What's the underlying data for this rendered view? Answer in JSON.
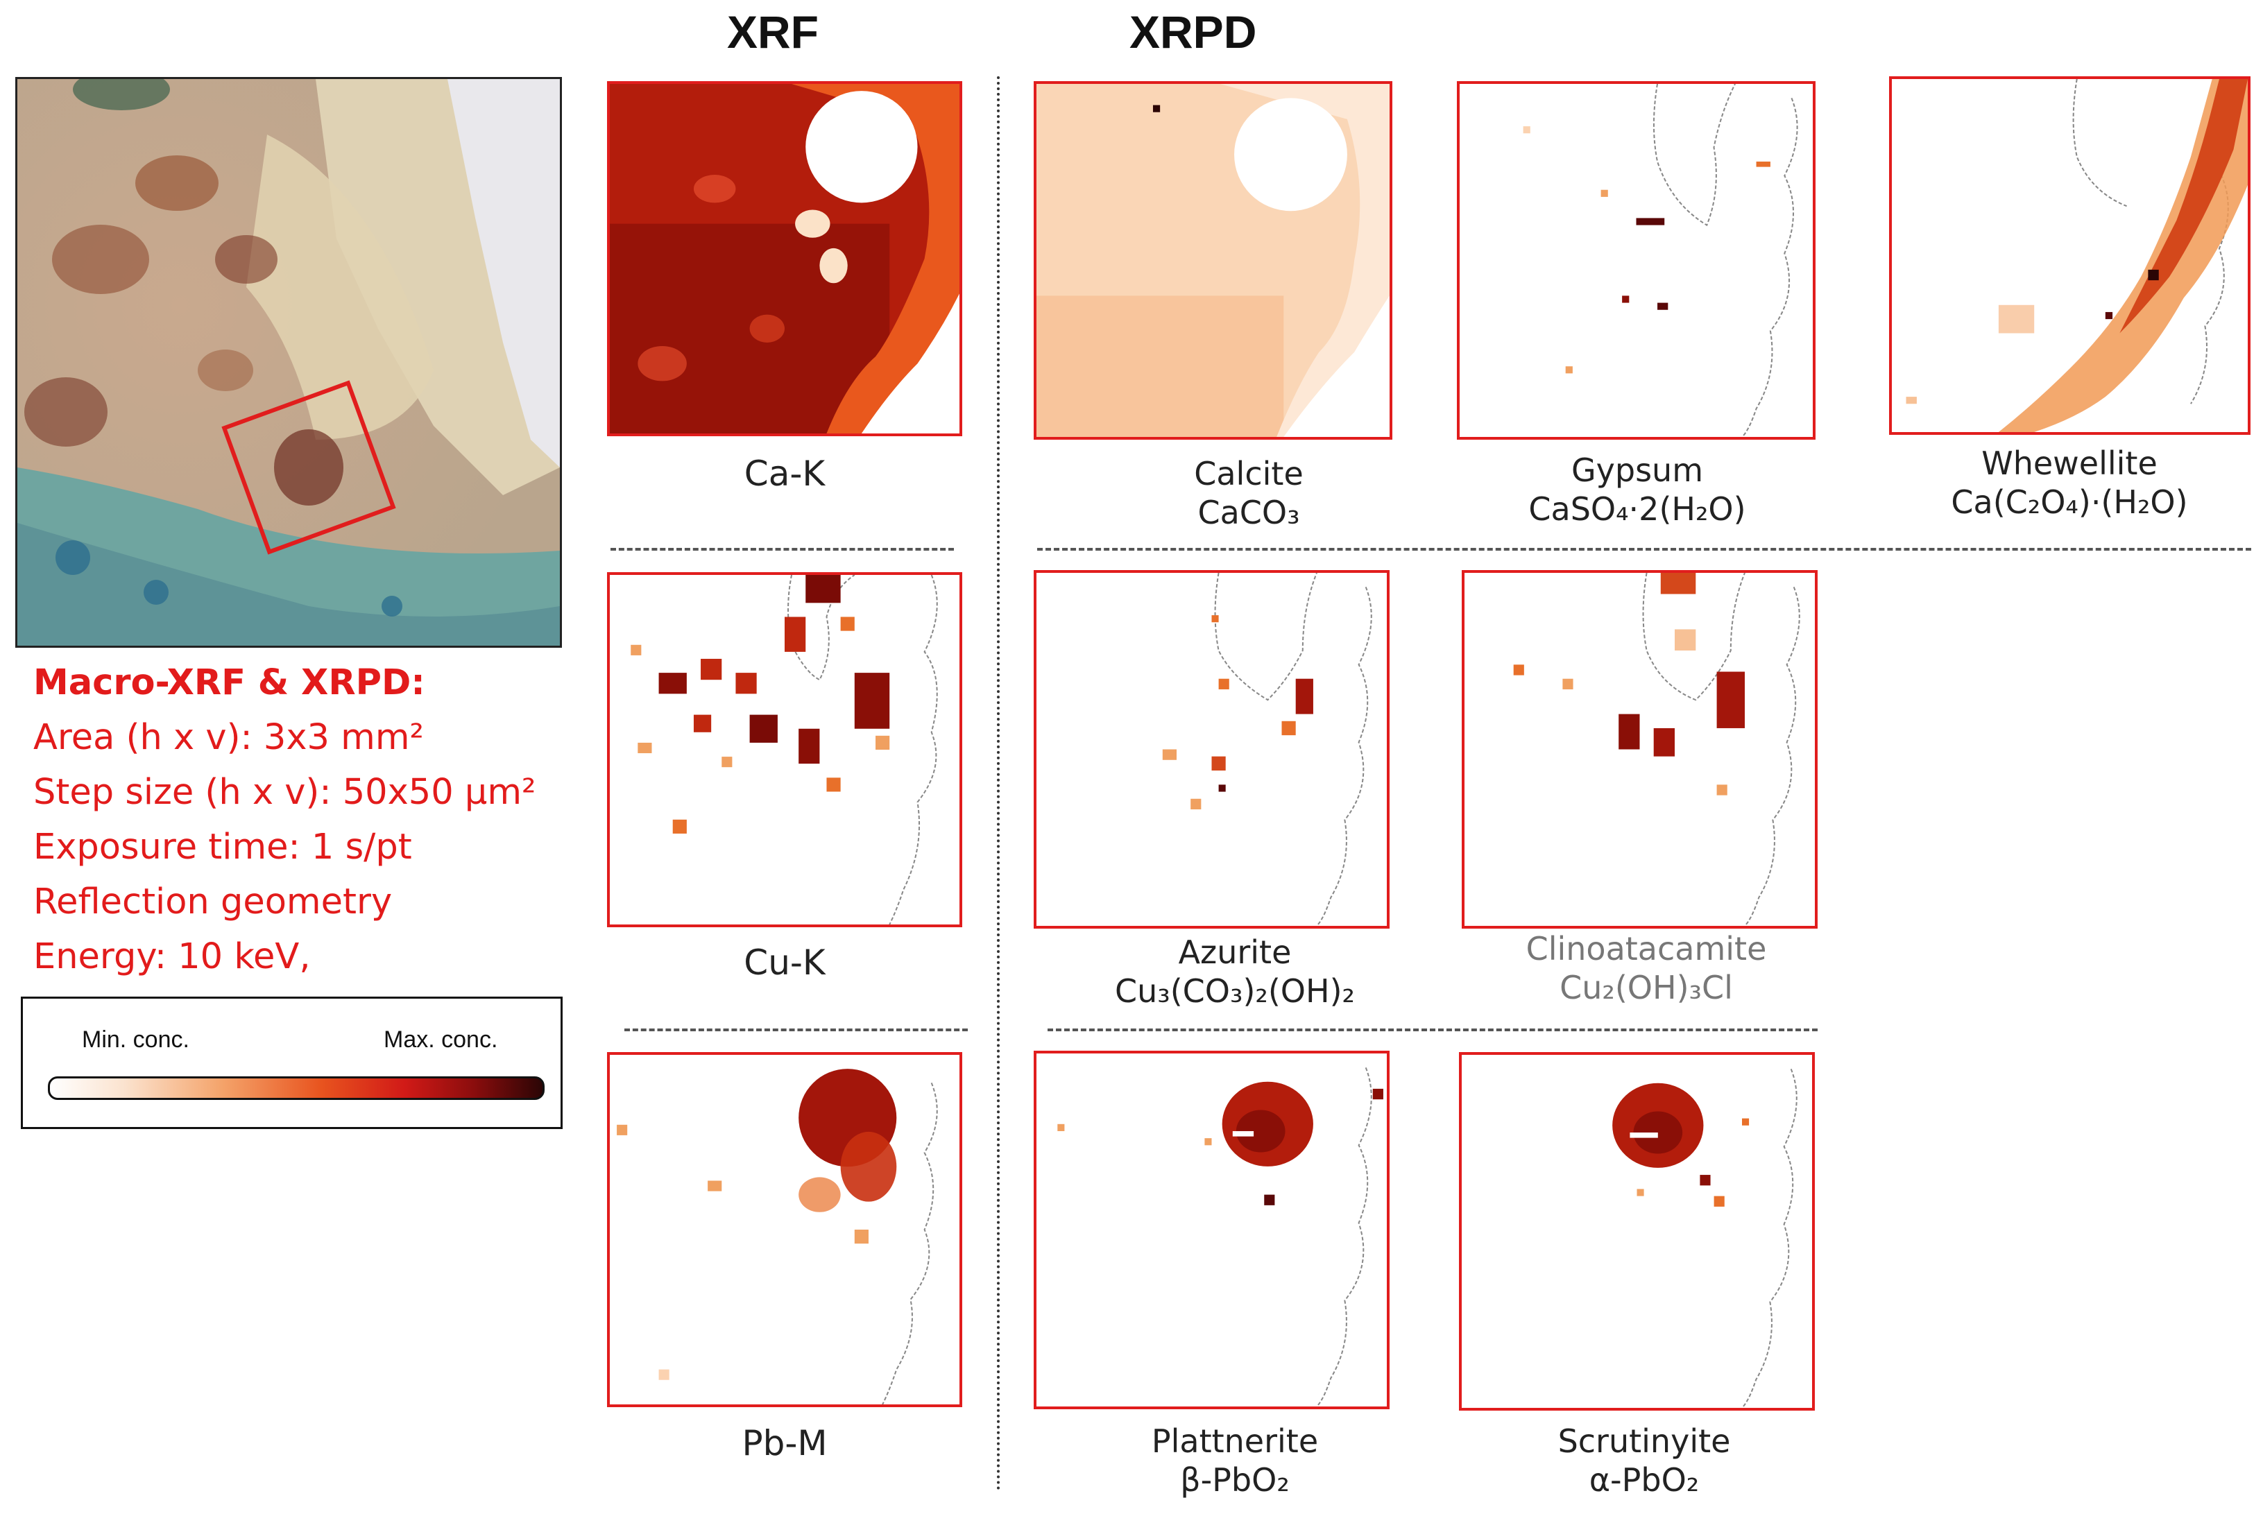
{
  "headers": {
    "xrf": "XRF",
    "xrpd": "XRPD"
  },
  "info": {
    "title": "Macro-XRF & XRPD:",
    "lines": [
      "Area (h x v): 3x3 mm²",
      "Step size (h x v): 50x50 μm²",
      "Exposure time: 1 s/pt",
      "Reflection geometry",
      "Energy: 10 keV,"
    ]
  },
  "legend": {
    "min": "Min. conc.",
    "max": "Max. conc."
  },
  "xrf": {
    "ca": "Ca-K",
    "cu": "Cu-K",
    "pb": "Pb-M"
  },
  "xrpd": {
    "calcite": {
      "name": "Calcite",
      "formula": "CaCO₃"
    },
    "gypsum": {
      "name": "Gypsum",
      "formula": "CaSO₄·2(H₂O)"
    },
    "whewellite": {
      "name": "Whewellite",
      "formula": "Ca(C₂O₄)·(H₂O)"
    },
    "azurite": {
      "name": "Azurite",
      "formula": "Cu₃(CO₃)₂(OH)₂"
    },
    "clino": {
      "name": "Clinoatacamite",
      "formula": "Cu₂(OH)₃Cl"
    },
    "plattnerite": {
      "name": "Plattnerite",
      "formula": "β-PbO₂"
    },
    "scrutinyite": {
      "name": "Scrutinyite",
      "formula": "α-PbO₂"
    }
  }
}
